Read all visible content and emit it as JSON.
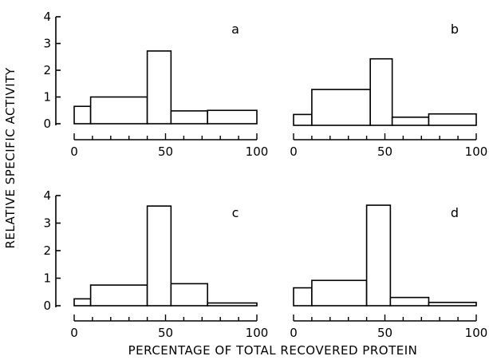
{
  "chart_data": [
    {
      "panel": "a",
      "type": "histogram",
      "bins": [
        {
          "x0": 0,
          "x1": 9,
          "value": 0.65
        },
        {
          "x0": 9,
          "x1": 40,
          "value": 1.0
        },
        {
          "x0": 40,
          "x1": 53,
          "value": 2.72
        },
        {
          "x0": 53,
          "x1": 73,
          "value": 0.48
        },
        {
          "x0": 73,
          "x1": 100,
          "value": 0.5
        }
      ],
      "xlim": [
        0,
        100
      ],
      "ylim": [
        0,
        4
      ],
      "xticks": [
        0,
        50,
        100
      ],
      "yticks": [
        0,
        1,
        2,
        3,
        4
      ]
    },
    {
      "panel": "b",
      "type": "histogram",
      "bins": [
        {
          "x0": 0,
          "x1": 10,
          "value": 0.4
        },
        {
          "x0": 10,
          "x1": 42,
          "value": 1.32
        },
        {
          "x0": 42,
          "x1": 54,
          "value": 2.45
        },
        {
          "x0": 54,
          "x1": 74,
          "value": 0.3
        },
        {
          "x0": 74,
          "x1": 100,
          "value": 0.42
        }
      ],
      "xlim": [
        0,
        100
      ],
      "ylim": [
        0,
        4
      ],
      "xticks": [
        0,
        50,
        100
      ],
      "yticks": [
        0,
        1,
        2,
        3,
        4
      ]
    },
    {
      "panel": "c",
      "type": "histogram",
      "bins": [
        {
          "x0": 0,
          "x1": 9,
          "value": 0.25
        },
        {
          "x0": 9,
          "x1": 40,
          "value": 0.75
        },
        {
          "x0": 40,
          "x1": 53,
          "value": 3.62
        },
        {
          "x0": 53,
          "x1": 73,
          "value": 0.8
        },
        {
          "x0": 73,
          "x1": 100,
          "value": 0.1
        }
      ],
      "xlim": [
        0,
        100
      ],
      "ylim": [
        0,
        4
      ],
      "xticks": [
        0,
        50,
        100
      ],
      "yticks": [
        0,
        1,
        2,
        3,
        4
      ]
    },
    {
      "panel": "d",
      "type": "histogram",
      "bins": [
        {
          "x0": 0,
          "x1": 10,
          "value": 0.65
        },
        {
          "x0": 10,
          "x1": 40,
          "value": 0.92
        },
        {
          "x0": 40,
          "x1": 53,
          "value": 3.65
        },
        {
          "x0": 53,
          "x1": 74,
          "value": 0.3
        },
        {
          "x0": 74,
          "x1": 100,
          "value": 0.12
        }
      ],
      "xlim": [
        0,
        100
      ],
      "ylim": [
        0,
        4
      ],
      "xticks": [
        0,
        50,
        100
      ],
      "yticks": [
        0,
        1,
        2,
        3,
        4
      ]
    }
  ],
  "ylabel": "RELATIVE SPECIFIC ACTIVITY",
  "xlabel": "PERCENTAGE OF TOTAL RECOVERED PROTEIN",
  "colors": {
    "stroke": "#000000",
    "fill": "#ffffff"
  }
}
